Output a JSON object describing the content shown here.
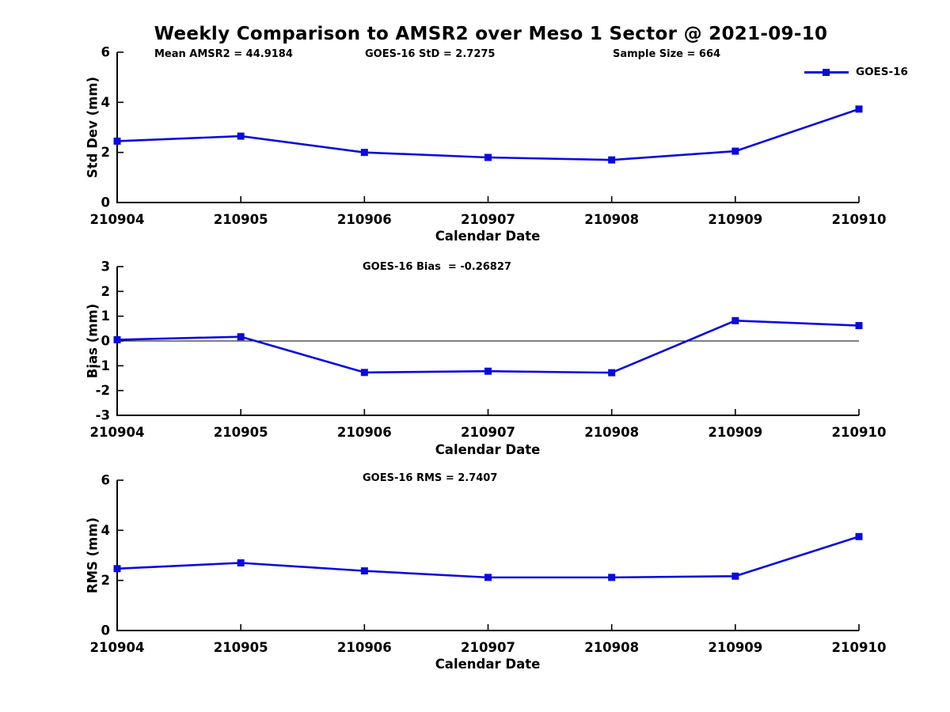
{
  "title": "Weekly Comparison to AMSR2 over Meso 1 Sector @ 2021-09-10",
  "colors": {
    "line": "#0a0ae0",
    "axis": "#000000"
  },
  "legend": {
    "label": "GOES-16",
    "position": "top-right",
    "marker": "square"
  },
  "chart_data": [
    {
      "type": "line",
      "id": "std-dev",
      "ylabel": "Std Dev (mm)",
      "xlabel": "Calendar Date",
      "categories": [
        "210904",
        "210905",
        "210906",
        "210907",
        "210908",
        "210909",
        "210910"
      ],
      "series": [
        {
          "name": "GOES-16",
          "values": [
            2.45,
            2.65,
            2.0,
            1.8,
            1.7,
            2.05,
            3.73
          ]
        }
      ],
      "ylim": [
        0,
        6
      ],
      "yticks": [
        0,
        2,
        4,
        6
      ],
      "grid": false,
      "zero_line": false,
      "annotations": [
        {
          "text": "Mean AMSR2 = 44.9184",
          "xfrac": 0.05
        },
        {
          "text": "GOES-16 StD = 2.7275",
          "xfrac": 0.335
        },
        {
          "text": "Sample Size = 664",
          "xfrac": 0.668
        }
      ]
    },
    {
      "type": "line",
      "id": "bias",
      "ylabel": "Bias (mm)",
      "xlabel": "Calendar Date",
      "categories": [
        "210904",
        "210905",
        "210906",
        "210907",
        "210908",
        "210909",
        "210910"
      ],
      "series": [
        {
          "name": "GOES-16",
          "values": [
            0.05,
            0.17,
            -1.27,
            -1.22,
            -1.28,
            0.82,
            0.62
          ]
        }
      ],
      "ylim": [
        -3,
        3
      ],
      "yticks": [
        -3,
        -2,
        -1,
        0,
        1,
        2,
        3
      ],
      "grid": false,
      "zero_line": true,
      "annotations": [
        {
          "text": "GOES-16 Bias  = -0.26827",
          "xfrac": 0.33
        }
      ]
    },
    {
      "type": "line",
      "id": "rms",
      "ylabel": "RMS (mm)",
      "xlabel": "Calendar Date",
      "categories": [
        "210904",
        "210905",
        "210906",
        "210907",
        "210908",
        "210909",
        "210910"
      ],
      "series": [
        {
          "name": "GOES-16",
          "values": [
            2.47,
            2.7,
            2.38,
            2.12,
            2.12,
            2.17,
            3.75
          ]
        }
      ],
      "ylim": [
        0,
        6
      ],
      "yticks": [
        0,
        2,
        4,
        6
      ],
      "grid": false,
      "zero_line": false,
      "annotations": [
        {
          "text": "GOES-16 RMS = 2.7407",
          "xfrac": 0.33
        }
      ]
    }
  ]
}
